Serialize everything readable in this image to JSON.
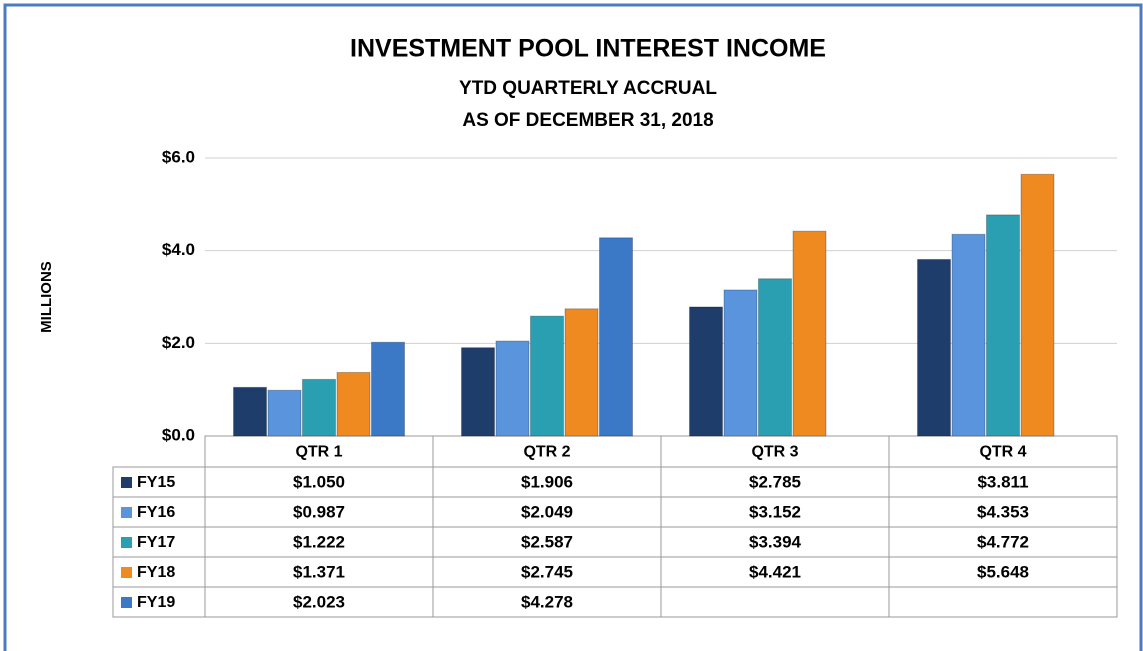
{
  "chart_data": {
    "type": "bar",
    "title": "INVESTMENT POOL INTEREST INCOME",
    "subtitle": [
      "YTD QUARTERLY ACCRUAL",
      "AS OF DECEMBER 31, 2018"
    ],
    "y_label": "MILLIONS",
    "categories": [
      "QTR 1",
      "QTR 2",
      "QTR 3",
      "QTR 4"
    ],
    "series": [
      {
        "name": "FY15",
        "color": "#1f3d6b",
        "values": [
          1.05,
          1.906,
          2.785,
          3.811
        ],
        "value_labels": [
          "$1.050",
          "$1.906",
          "$2.785",
          "$3.811"
        ]
      },
      {
        "name": "FY16",
        "color": "#5a94dc",
        "values": [
          0.987,
          2.049,
          3.152,
          4.353
        ],
        "value_labels": [
          "$0.987",
          "$2.049",
          "$3.152",
          "$4.353"
        ]
      },
      {
        "name": "FY17",
        "color": "#2a9fb2",
        "values": [
          1.222,
          2.587,
          3.394,
          4.772
        ],
        "value_labels": [
          "$1.222",
          "$2.587",
          "$3.394",
          "$4.772"
        ]
      },
      {
        "name": "FY18",
        "color": "#ef8a20",
        "values": [
          1.371,
          2.745,
          4.421,
          5.648
        ],
        "value_labels": [
          "$1.371",
          "$2.745",
          "$4.421",
          "$5.648"
        ]
      },
      {
        "name": "FY19",
        "color": "#3b78c6",
        "values": [
          2.023,
          4.278,
          null,
          null
        ],
        "value_labels": [
          "$2.023",
          "$4.278",
          null,
          null
        ]
      }
    ],
    "ylim": [
      0,
      6
    ],
    "yticks": [
      {
        "value": 0,
        "label": "$0.0"
      },
      {
        "value": 2,
        "label": "$2.0"
      },
      {
        "value": 4,
        "label": "$4.0"
      },
      {
        "value": 6,
        "label": "$6.0"
      }
    ],
    "grid": true
  }
}
